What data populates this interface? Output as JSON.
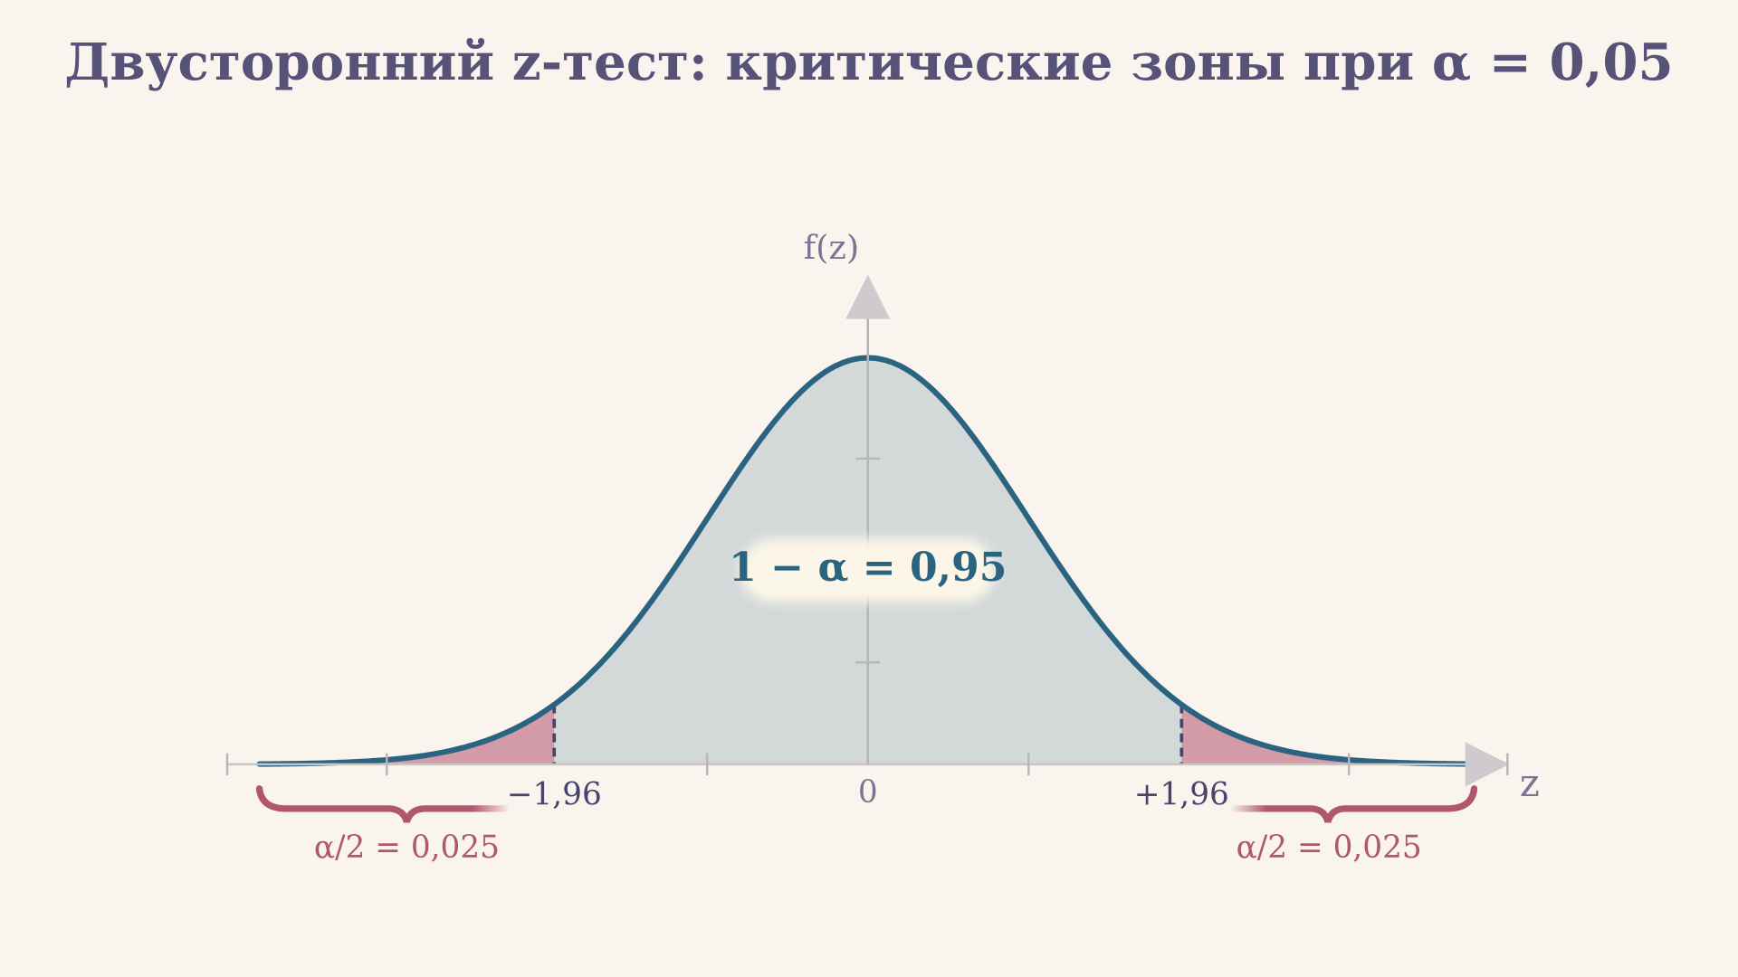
{
  "title": "Двусторонний z-тест: критические зоны при α = 0,05",
  "axes": {
    "y_label": "f(z)",
    "x_label": "z"
  },
  "ticks": [
    "−1,96",
    "0",
    "+1,96"
  ],
  "center_label": "1 − α = 0,95",
  "tail_labels": [
    "α/2 = 0,025",
    "α/2 = 0,025"
  ]
}
